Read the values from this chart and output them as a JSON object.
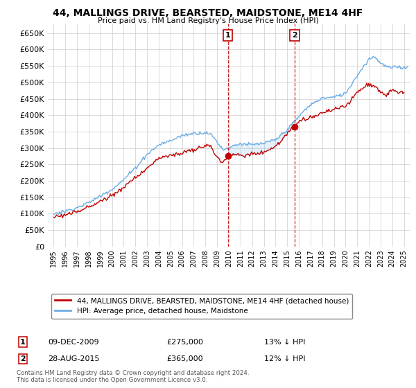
{
  "title": "44, MALLINGS DRIVE, BEARSTED, MAIDSTONE, ME14 4HF",
  "subtitle": "Price paid vs. HM Land Registry's House Price Index (HPI)",
  "legend_line1": "44, MALLINGS DRIVE, BEARSTED, MAIDSTONE, ME14 4HF (detached house)",
  "legend_line2": "HPI: Average price, detached house, Maidstone",
  "annotation1": {
    "label": "1",
    "date": "09-DEC-2009",
    "price": "£275,000",
    "hpi": "13% ↓ HPI",
    "x_year": 2009.92
  },
  "annotation2": {
    "label": "2",
    "date": "28-AUG-2015",
    "price": "£365,000",
    "hpi": "12% ↓ HPI",
    "x_year": 2015.65
  },
  "footer": "Contains HM Land Registry data © Crown copyright and database right 2024.\nThis data is licensed under the Open Government Licence v3.0.",
  "hpi_color": "#6aace6",
  "price_color": "#c00000",
  "annotation_color": "#c00000",
  "background_color": "#ffffff",
  "grid_color": "#cccccc",
  "ylim": [
    0,
    680000
  ],
  "yticks": [
    0,
    50000,
    100000,
    150000,
    200000,
    250000,
    300000,
    350000,
    400000,
    450000,
    500000,
    550000,
    600000,
    650000
  ],
  "xlim_start": 1994.5,
  "xlim_end": 2025.5,
  "sale1_y": 275000,
  "sale2_y": 365000
}
